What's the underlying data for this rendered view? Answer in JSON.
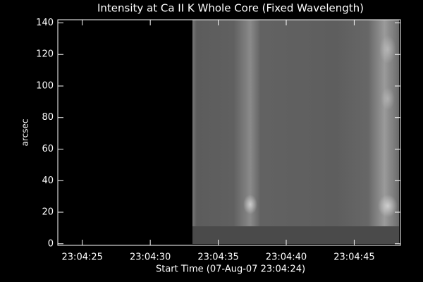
{
  "chart_data": {
    "type": "image",
    "title": "Intensity at Ca II K Whole Core (Fixed Wavelength)",
    "xlabel": "Start Time (07-Aug-07 23:04:24)",
    "ylabel": "arcsec",
    "xlim": [
      23.2,
      48.4
    ],
    "xticks": [
      {
        "value": 25,
        "label": "23:04:25"
      },
      {
        "value": 30,
        "label": "23:04:30"
      },
      {
        "value": 35,
        "label": "23:04:35"
      },
      {
        "value": 40,
        "label": "23:04:40"
      },
      {
        "value": 45,
        "label": "23:04:45"
      }
    ],
    "ylim": [
      -1,
      142
    ],
    "yticks": [
      0,
      20,
      40,
      60,
      80,
      100,
      120,
      140
    ]
  }
}
